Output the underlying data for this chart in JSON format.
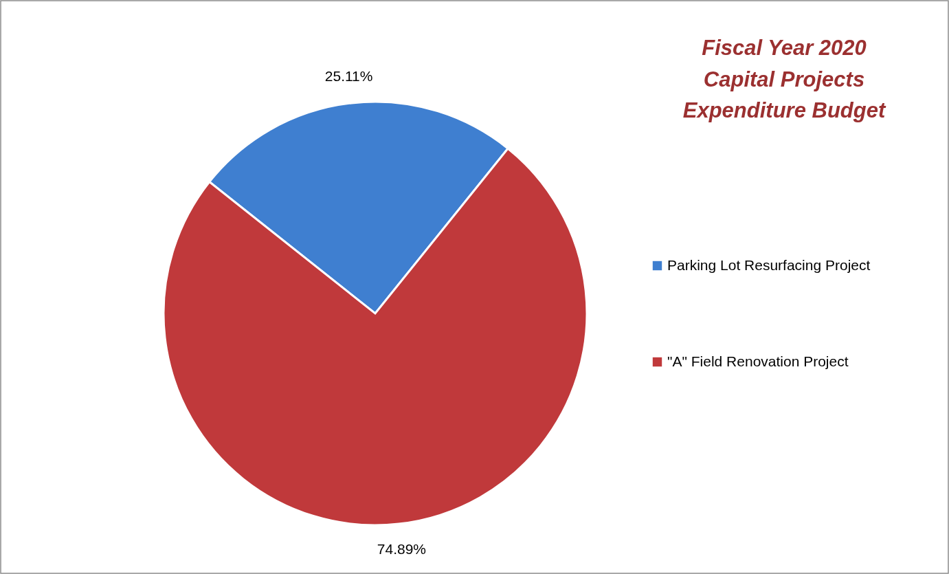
{
  "chart_data": {
    "type": "pie",
    "title": "Fiscal Year 2020\nCapital Projects\nExpenditure Budget",
    "categories": [
      "Parking Lot Resurfacing Project",
      "\"A\" Field Renovation Project"
    ],
    "values": [
      25.11,
      74.89
    ],
    "colors": [
      "#3f7fd0",
      "#c0393b"
    ],
    "value_labels": [
      "25.11%",
      "74.89%"
    ],
    "legend": "right"
  }
}
